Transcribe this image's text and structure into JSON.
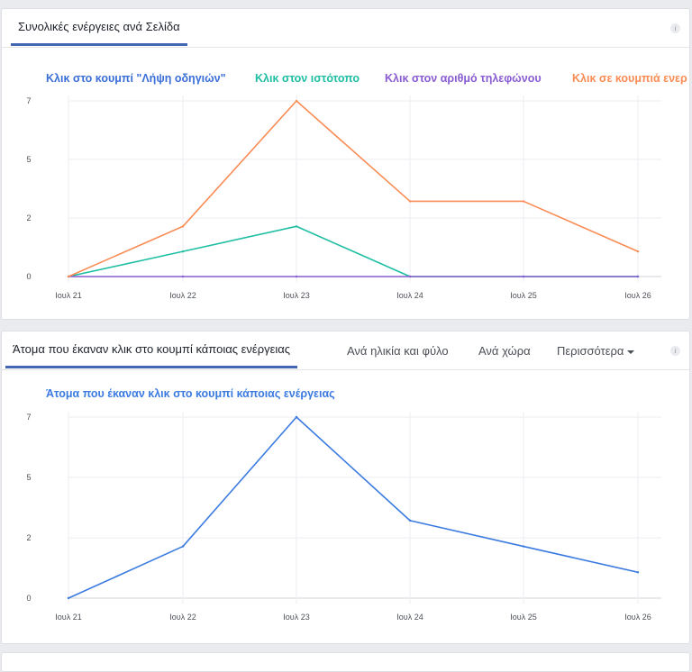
{
  "card1": {
    "tab": "Συνολικές ενέργειες ανά Σελίδα",
    "info_icon": "i"
  },
  "card2": {
    "tabs": [
      "Άτομα που έκαναν κλικ στο κουμπί κάποιας ενέργειας",
      "Ανά ηλικία και φύλο",
      "Ανά χώρα",
      "Περισσότερα"
    ],
    "info_icon": "i"
  },
  "chart_data": [
    {
      "type": "line",
      "categories": [
        "Ιουλ 21",
        "Ιουλ 22",
        "Ιουλ 23",
        "Ιουλ 24",
        "Ιουλ 25",
        "Ιουλ 26"
      ],
      "ylim": [
        0,
        7
      ],
      "yticks": [
        0,
        2.33,
        4.67,
        7
      ],
      "ytick_labels": [
        "0",
        "2",
        "5",
        "7"
      ],
      "grid": true,
      "legend": "top",
      "series": [
        {
          "name": "Κλικ στο κουμπί \"Λήψη οδηγιών\"",
          "color": "#3b6fd8",
          "values": [
            0,
            0,
            0,
            0,
            0,
            0
          ],
          "drawn": false
        },
        {
          "name": "Κλικ στον ιστότοπο",
          "color": "#1fbea3",
          "values": [
            0,
            1,
            2,
            0,
            0,
            0
          ]
        },
        {
          "name": "Κλικ στον αριθμό τηλεφώνου",
          "color": "#8a5cd1",
          "values": [
            0,
            0,
            0,
            0,
            0,
            0
          ]
        },
        {
          "name": "Κλικ σε κουμπιά ενερ",
          "color": "#f98c55",
          "values": [
            0,
            2,
            7,
            3,
            3,
            1
          ]
        }
      ]
    },
    {
      "type": "line",
      "categories": [
        "Ιουλ 21",
        "Ιουλ 22",
        "Ιουλ 23",
        "Ιουλ 24",
        "Ιουλ 25",
        "Ιουλ 26"
      ],
      "ylim": [
        0,
        7
      ],
      "yticks": [
        0,
        2.33,
        4.67,
        7
      ],
      "ytick_labels": [
        "0",
        "2",
        "5",
        "7"
      ],
      "grid": true,
      "legend": "top",
      "series": [
        {
          "name": "Άτομα που έκαναν κλικ στο κουμπί κάποιας ενέργειας",
          "color": "#3b7be0",
          "values": [
            0,
            2,
            7,
            3,
            2,
            1
          ]
        }
      ]
    }
  ]
}
